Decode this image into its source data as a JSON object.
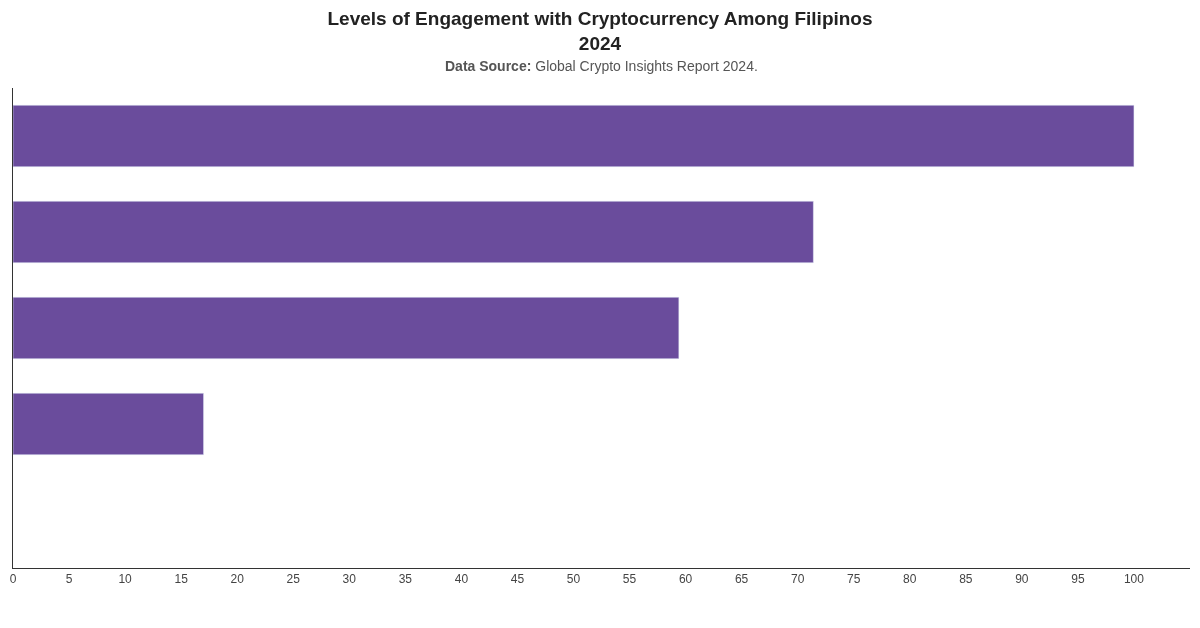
{
  "chart_data": {
    "type": "bar",
    "orientation": "horizontal",
    "title": "Levels of Engagement with Cryptocurrency Among Filipinos\n2024",
    "subtitle": "Data Source: Global Crypto Insights Report 2024.",
    "categories": [
      null,
      null,
      null,
      null,
      null
    ],
    "values": [
      100,
      71.4,
      59.4,
      17,
      null
    ],
    "color": "#6a4c9c",
    "xlim": [
      0,
      105
    ],
    "xticks": [
      0,
      5,
      10,
      15,
      20,
      25,
      30,
      35,
      40,
      45,
      50,
      55,
      60,
      65,
      70,
      75,
      80,
      85,
      90,
      95,
      100
    ],
    "legend": false
  }
}
